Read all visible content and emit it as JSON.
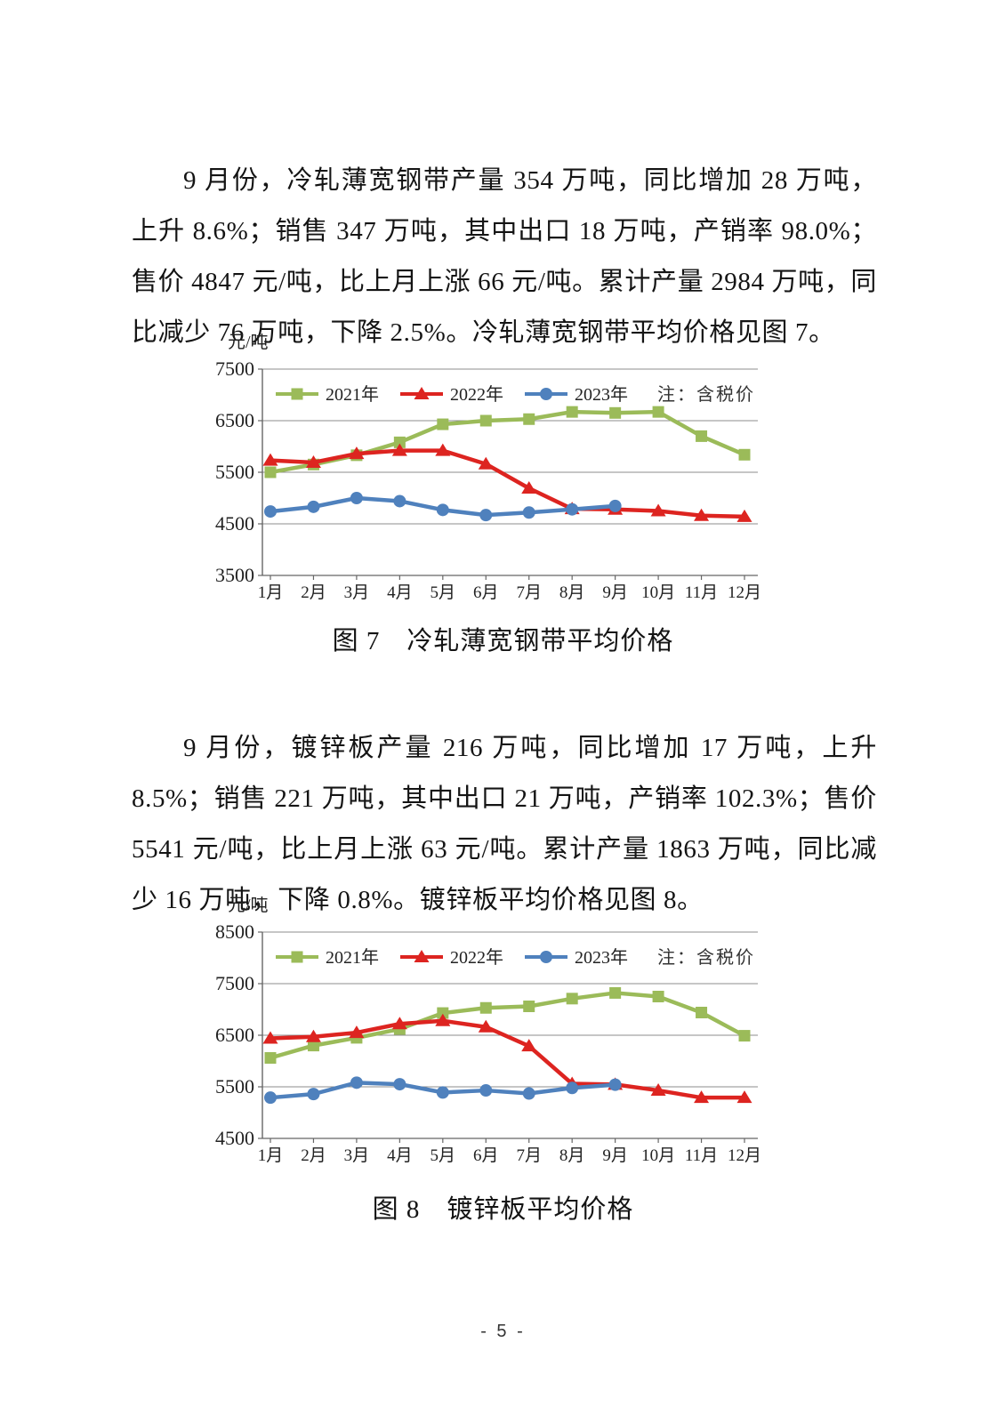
{
  "page": {
    "number": "- 5 -"
  },
  "paragraphs": [
    {
      "text": "9 月份，冷轧薄宽钢带产量 354 万吨，同比增加 28 万吨，上升 8.6%；销售 347 万吨，其中出口 18 万吨，产销率 98.0%；售价 4847 元/吨，比上月上涨 66 元/吨。累计产量 2984 万吨，同比减少 76 万吨，下降 2.5%。冷轧薄宽钢带平均价格见图 7。"
    },
    {
      "text": "9 月份，镀锌板产量 216 万吨，同比增加 17 万吨，上升 8.5%；销售 221 万吨，其中出口 21 万吨，产销率 102.3%；售价 5541 元/吨，比上月上涨 63 元/吨。累计产量 1863 万吨，同比减少 16 万吨，下降 0.8%。镀锌板平均价格见图 8。"
    }
  ],
  "chart_data": [
    {
      "type": "line",
      "title": "冷轧薄宽钢带平均价格",
      "caption": "图 7　冷轧薄宽钢带平均价格",
      "unit_label": "元/吨",
      "note": "注：含税价",
      "legend_position": "top-left-inside",
      "grid": true,
      "categories": [
        "1月",
        "2月",
        "3月",
        "4月",
        "5月",
        "6月",
        "7月",
        "8月",
        "9月",
        "10月",
        "11月",
        "12月"
      ],
      "ylim": [
        3500,
        7500
      ],
      "yticks": [
        3500,
        4500,
        5500,
        6500,
        7500
      ],
      "series": [
        {
          "name": "2021年",
          "color": "#9bbb59",
          "marker": "square",
          "values": [
            5500,
            5650,
            5830,
            6080,
            6430,
            6500,
            6530,
            6670,
            6650,
            6670,
            6200,
            5840
          ]
        },
        {
          "name": "2022年",
          "color": "#dd2420",
          "marker": "triangle",
          "values": [
            5730,
            5690,
            5860,
            5920,
            5920,
            5660,
            5190,
            4790,
            4780,
            4750,
            4660,
            4640
          ]
        },
        {
          "name": "2023年",
          "color": "#4f81bd",
          "marker": "circle",
          "values": [
            4740,
            4830,
            5000,
            4940,
            4770,
            4670,
            4720,
            4781,
            4847,
            null,
            null,
            null
          ]
        }
      ]
    },
    {
      "type": "line",
      "title": "镀锌板平均价格",
      "caption": "图 8　镀锌板平均价格",
      "unit_label": "元/吨",
      "note": "注：含税价",
      "legend_position": "top-left-inside",
      "grid": true,
      "categories": [
        "1月",
        "2月",
        "3月",
        "4月",
        "5月",
        "6月",
        "7月",
        "8月",
        "9月",
        "10月",
        "11月",
        "12月"
      ],
      "ylim": [
        4500,
        8500
      ],
      "yticks": [
        4500,
        5500,
        6500,
        7500,
        8500
      ],
      "series": [
        {
          "name": "2021年",
          "color": "#9bbb59",
          "marker": "square",
          "values": [
            6060,
            6300,
            6450,
            6620,
            6930,
            7030,
            7060,
            7210,
            7320,
            7250,
            6940,
            6490
          ]
        },
        {
          "name": "2022年",
          "color": "#dd2420",
          "marker": "triangle",
          "values": [
            6440,
            6470,
            6550,
            6720,
            6780,
            6660,
            6290,
            5560,
            5545,
            5430,
            5290,
            5290
          ]
        },
        {
          "name": "2023年",
          "color": "#4f81bd",
          "marker": "circle",
          "values": [
            5290,
            5360,
            5580,
            5550,
            5390,
            5430,
            5370,
            5478,
            5541,
            null,
            null,
            null
          ]
        }
      ]
    }
  ]
}
